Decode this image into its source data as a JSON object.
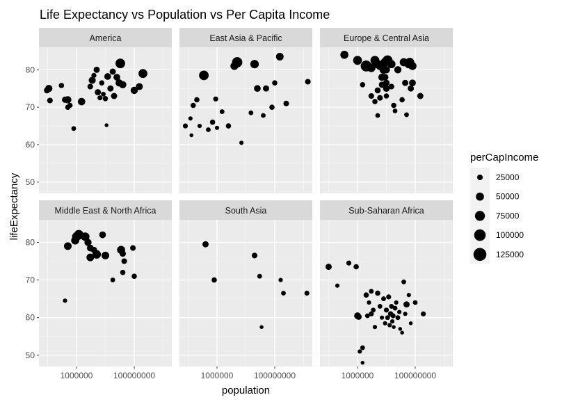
{
  "chart_data": {
    "type": "scatter",
    "title": "Life Expectancy vs Population vs Per Capita Income",
    "xlabel": "population",
    "ylabel": "lifeExpectancy",
    "x_scale": "log10",
    "xlim": [
      50000,
      2000000000
    ],
    "ylim": [
      47,
      86
    ],
    "x_ticks": [
      1000000,
      100000000
    ],
    "x_tick_labels": [
      "1000000",
      "100000000"
    ],
    "y_ticks": [
      50,
      60,
      70,
      80
    ],
    "y_tick_labels": [
      "50",
      "60",
      "70",
      "80"
    ],
    "grid": true,
    "legend": {
      "title": "perCapIncome",
      "placement": "right",
      "values": [
        25000,
        50000,
        75000,
        100000,
        125000
      ],
      "labels": [
        "25000",
        "50000",
        "75000",
        "100000",
        "125000"
      ]
    },
    "size_range": [
      10000,
      130000
    ],
    "panels": [
      {
        "name": "America",
        "points": [
          [
            95000,
            74.5,
            30000
          ],
          [
            110000,
            75,
            40000
          ],
          [
            120000,
            71.8,
            25000
          ],
          [
            300000,
            75.8,
            22000
          ],
          [
            400000,
            72,
            30000
          ],
          [
            500000,
            70,
            22000
          ],
          [
            500000,
            72,
            40000
          ],
          [
            600000,
            70.5,
            20000
          ],
          [
            800000,
            64.3,
            18000
          ],
          [
            1500000,
            71.5,
            42000
          ],
          [
            3000000,
            75.5,
            25000
          ],
          [
            3500000,
            77.2,
            38000
          ],
          [
            4000000,
            78.5,
            20000
          ],
          [
            5000000,
            80,
            30000
          ],
          [
            5500000,
            74,
            30000
          ],
          [
            6500000,
            72.5,
            20000
          ],
          [
            7500000,
            76.5,
            22000
          ],
          [
            8500000,
            73.5,
            18000
          ],
          [
            10000000,
            72.3,
            22000
          ],
          [
            11000000,
            65.2,
            12000
          ],
          [
            12000000,
            78.2,
            35000
          ],
          [
            15000000,
            75,
            30000
          ],
          [
            18000000,
            79.5,
            30000
          ],
          [
            20000000,
            73,
            30000
          ],
          [
            25000000,
            78,
            35000
          ],
          [
            30000000,
            76.5,
            40000
          ],
          [
            33000000,
            81.7,
            70000
          ],
          [
            40000000,
            76,
            40000
          ],
          [
            100000000,
            74.5,
            40000
          ],
          [
            150000000,
            75.5,
            38000
          ],
          [
            200000000,
            79,
            60000
          ]
        ]
      },
      {
        "name": "East Asia & Pacific",
        "points": [
          [
            80000,
            65,
            20000
          ],
          [
            120000,
            67,
            15000
          ],
          [
            130000,
            62.5,
            12000
          ],
          [
            150000,
            70.5,
            22000
          ],
          [
            200000,
            72,
            22000
          ],
          [
            250000,
            65,
            15000
          ],
          [
            350000,
            78.5,
            70000
          ],
          [
            500000,
            64,
            18000
          ],
          [
            700000,
            66,
            22000
          ],
          [
            900000,
            72.2,
            20000
          ],
          [
            1000000,
            64.5,
            15000
          ],
          [
            1500000,
            68.8,
            18000
          ],
          [
            2500000,
            65,
            22000
          ],
          [
            4000000,
            81,
            48000
          ],
          [
            5000000,
            82,
            80000
          ],
          [
            7000000,
            60.5,
            15000
          ],
          [
            15000000,
            68.5,
            18000
          ],
          [
            20000000,
            81.5,
            55000
          ],
          [
            25000000,
            75,
            35000
          ],
          [
            40000000,
            67.8,
            18000
          ],
          [
            50000000,
            75,
            30000
          ],
          [
            80000000,
            70,
            22000
          ],
          [
            100000000,
            76.5,
            22000
          ],
          [
            150000000,
            83.5,
            45000
          ],
          [
            250000000,
            71,
            25000
          ],
          [
            1400000000,
            76.8,
            25000
          ]
        ]
      },
      {
        "name": "Europe & Central Asia",
        "points": [
          [
            350000,
            84,
            50000
          ],
          [
            1000000,
            82.5,
            60000
          ],
          [
            2000000,
            81,
            90000
          ],
          [
            1500000,
            76,
            22000
          ],
          [
            3000000,
            80.5,
            55000
          ],
          [
            4000000,
            82.5,
            60000
          ],
          [
            5000000,
            81.5,
            55000
          ],
          [
            6000000,
            81,
            50000
          ],
          [
            7000000,
            78,
            40000
          ],
          [
            8000000,
            80,
            50000
          ],
          [
            9000000,
            82,
            60000
          ],
          [
            10000000,
            75,
            35000
          ],
          [
            5000000,
            74.5,
            28000
          ],
          [
            6000000,
            72.5,
            25000
          ],
          [
            7000000,
            76,
            30000
          ],
          [
            3000000,
            73,
            25000
          ],
          [
            4000000,
            71.5,
            22000
          ],
          [
            5000000,
            67.8,
            18000
          ],
          [
            8000000,
            80.5,
            50000
          ],
          [
            9000000,
            78,
            35000
          ],
          [
            10000000,
            80,
            40000
          ],
          [
            10000000,
            76.5,
            32000
          ],
          [
            10000000,
            73,
            22000
          ],
          [
            11000000,
            82.5,
            75000
          ],
          [
            15000000,
            81.5,
            50000
          ],
          [
            15000000,
            75.5,
            25000
          ],
          [
            18000000,
            70.5,
            22000
          ],
          [
            20000000,
            69,
            18000
          ],
          [
            25000000,
            80,
            40000
          ],
          [
            40000000,
            82,
            50000
          ],
          [
            45000000,
            76.5,
            30000
          ],
          [
            35000000,
            72,
            22000
          ],
          [
            50000000,
            68,
            18000
          ],
          [
            60000000,
            81.5,
            55000
          ],
          [
            65000000,
            82,
            60000
          ],
          [
            80000000,
            81,
            50000
          ],
          [
            70000000,
            75,
            30000
          ],
          [
            80000000,
            76.5,
            35000
          ],
          [
            150000000,
            73,
            30000
          ]
        ]
      },
      {
        "name": "Middle East & North Africa",
        "points": [
          [
            500000,
            79,
            45000
          ],
          [
            900000,
            80.5,
            50000
          ],
          [
            1000000,
            81.5,
            60000
          ],
          [
            1200000,
            82,
            70000
          ],
          [
            2000000,
            81.5,
            55000
          ],
          [
            2500000,
            80,
            40000
          ],
          [
            3000000,
            78.5,
            35000
          ],
          [
            3000000,
            76,
            45000
          ],
          [
            4000000,
            78,
            30000
          ],
          [
            5000000,
            77,
            40000
          ],
          [
            5000000,
            76.8,
            55000
          ],
          [
            8000000,
            82,
            35000
          ],
          [
            10000000,
            76.5,
            45000
          ],
          [
            18000000,
            70,
            18000
          ],
          [
            35000000,
            78,
            50000
          ],
          [
            40000000,
            77,
            30000
          ],
          [
            40000000,
            72,
            22000
          ],
          [
            45000000,
            75,
            25000
          ],
          [
            90000000,
            78.5,
            25000
          ],
          [
            100000000,
            71,
            22000
          ],
          [
            400000,
            64.5,
            15000
          ]
        ]
      },
      {
        "name": "South Asia",
        "points": [
          [
            400000,
            79.5,
            30000
          ],
          [
            800000,
            70,
            22000
          ],
          [
            20000000,
            76.5,
            25000
          ],
          [
            30000000,
            71,
            18000
          ],
          [
            35000000,
            57.5,
            12000
          ],
          [
            160000000,
            70,
            15000
          ],
          [
            200000000,
            66.5,
            18000
          ],
          [
            1300000000,
            66.5,
            20000
          ]
        ]
      },
      {
        "name": "Sub-Saharan Africa",
        "points": [
          [
            100000,
            73.5,
            30000
          ],
          [
            200000,
            68.5,
            15000
          ],
          [
            500000,
            74.5,
            20000
          ],
          [
            900000,
            73.5,
            22000
          ],
          [
            1000000,
            60.5,
            35000
          ],
          [
            1100000,
            60.2,
            28000
          ],
          [
            1200000,
            51,
            15000
          ],
          [
            1500000,
            52,
            18000
          ],
          [
            1500000,
            48,
            12000
          ],
          [
            2000000,
            66,
            22000
          ],
          [
            2200000,
            60.5,
            18000
          ],
          [
            2500000,
            64,
            15000
          ],
          [
            3000000,
            61,
            20000
          ],
          [
            3500000,
            62,
            18000
          ],
          [
            4000000,
            57.5,
            15000
          ],
          [
            5000000,
            66.5,
            22000
          ],
          [
            6000000,
            63,
            18000
          ],
          [
            7000000,
            60,
            15000
          ],
          [
            8000000,
            65,
            18000
          ],
          [
            9000000,
            58.5,
            15000
          ],
          [
            10000000,
            62,
            20000
          ],
          [
            11000000,
            60,
            18000
          ],
          [
            12000000,
            65.5,
            20000
          ],
          [
            13000000,
            58,
            15000
          ],
          [
            14000000,
            61,
            22000
          ],
          [
            15000000,
            63,
            18000
          ],
          [
            16000000,
            59,
            15000
          ],
          [
            17000000,
            60.5,
            20000
          ],
          [
            18000000,
            57.5,
            12000
          ],
          [
            20000000,
            62.5,
            18000
          ],
          [
            22000000,
            64,
            15000
          ],
          [
            25000000,
            60,
            18000
          ],
          [
            28000000,
            61.5,
            15000
          ],
          [
            30000000,
            57,
            12000
          ],
          [
            35000000,
            56,
            12000
          ],
          [
            40000000,
            69.5,
            18000
          ],
          [
            45000000,
            61,
            15000
          ],
          [
            50000000,
            63.5,
            30000
          ],
          [
            60000000,
            66,
            15000
          ],
          [
            70000000,
            58.5,
            12000
          ],
          [
            100000000,
            64,
            18000
          ],
          [
            190000000,
            61,
            20000
          ],
          [
            3000000,
            67,
            18000
          ]
        ]
      }
    ]
  }
}
